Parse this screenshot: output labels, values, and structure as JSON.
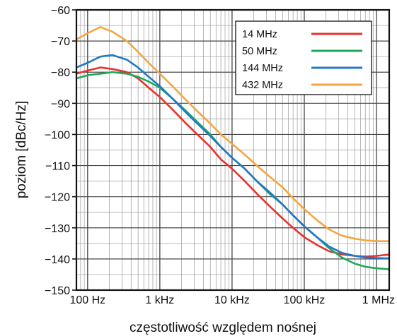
{
  "chart_data": {
    "type": "line",
    "xscale": "log",
    "xlabel": "częstotliwość względem nośnej",
    "ylabel": "poziom [dBc/Hz]",
    "xlim": [
      70,
      1500000
    ],
    "ylim": [
      -150,
      -60
    ],
    "xticks": [
      {
        "value": 100,
        "label": "100 Hz"
      },
      {
        "value": 1000,
        "label": "1 kHz"
      },
      {
        "value": 10000,
        "label": "10 kHz"
      },
      {
        "value": 100000,
        "label": "100 kHz"
      },
      {
        "value": 1000000,
        "label": "1 MHz"
      }
    ],
    "yticks": [
      {
        "value": -60,
        "label": "−60"
      },
      {
        "value": -70,
        "label": "−70"
      },
      {
        "value": -80,
        "label": "−80"
      },
      {
        "value": -90,
        "label": "−90"
      },
      {
        "value": -100,
        "label": "−100"
      },
      {
        "value": -110,
        "label": "−110"
      },
      {
        "value": -120,
        "label": "−120"
      },
      {
        "value": -130,
        "label": "−130"
      },
      {
        "value": -140,
        "label": "−140"
      },
      {
        "value": -150,
        "label": "−150"
      }
    ],
    "grid": true,
    "legend_position": "top-right",
    "series": [
      {
        "name": "14 MHz",
        "color": "#e8322d",
        "points": [
          [
            70,
            -80.5
          ],
          [
            100,
            -79.5
          ],
          [
            150,
            -78.5
          ],
          [
            220,
            -79
          ],
          [
            350,
            -80
          ],
          [
            500,
            -82
          ],
          [
            700,
            -85
          ],
          [
            1000,
            -88
          ],
          [
            1500,
            -92
          ],
          [
            2200,
            -96
          ],
          [
            3300,
            -100
          ],
          [
            5000,
            -104
          ],
          [
            7000,
            -108
          ],
          [
            10000,
            -111
          ],
          [
            15000,
            -115
          ],
          [
            22000,
            -119
          ],
          [
            33000,
            -123
          ],
          [
            50000,
            -127
          ],
          [
            70000,
            -130
          ],
          [
            100000,
            -133
          ],
          [
            150000,
            -135.5
          ],
          [
            220000,
            -137.5
          ],
          [
            330000,
            -138.5
          ],
          [
            500000,
            -139
          ],
          [
            700000,
            -139.2
          ],
          [
            1000000,
            -139
          ],
          [
            1500000,
            -138.6
          ]
        ]
      },
      {
        "name": "50 MHz",
        "color": "#1fa85a",
        "points": [
          [
            70,
            -82
          ],
          [
            100,
            -81
          ],
          [
            150,
            -80.5
          ],
          [
            220,
            -80
          ],
          [
            350,
            -80.5
          ],
          [
            500,
            -81.5
          ],
          [
            700,
            -83
          ],
          [
            1000,
            -85
          ],
          [
            1500,
            -88.5
          ],
          [
            2200,
            -92
          ],
          [
            3300,
            -96
          ],
          [
            5000,
            -100
          ],
          [
            7000,
            -104
          ],
          [
            10000,
            -107.5
          ],
          [
            15000,
            -111
          ],
          [
            22000,
            -115
          ],
          [
            33000,
            -119
          ],
          [
            50000,
            -122.5
          ],
          [
            70000,
            -126
          ],
          [
            100000,
            -129.5
          ],
          [
            150000,
            -133
          ],
          [
            220000,
            -136.5
          ],
          [
            330000,
            -139.5
          ],
          [
            500000,
            -141.5
          ],
          [
            700000,
            -142.5
          ],
          [
            1000000,
            -143
          ],
          [
            1500000,
            -143.3
          ]
        ]
      },
      {
        "name": "144 MHz",
        "color": "#1f78c8",
        "points": [
          [
            70,
            -78.5
          ],
          [
            100,
            -77
          ],
          [
            150,
            -75
          ],
          [
            220,
            -74.5
          ],
          [
            350,
            -76
          ],
          [
            500,
            -78.5
          ],
          [
            700,
            -81.5
          ],
          [
            1000,
            -84.5
          ],
          [
            1500,
            -88.5
          ],
          [
            2200,
            -92.5
          ],
          [
            3300,
            -96.5
          ],
          [
            5000,
            -100.5
          ],
          [
            7000,
            -104
          ],
          [
            10000,
            -107.5
          ],
          [
            15000,
            -111
          ],
          [
            22000,
            -115
          ],
          [
            33000,
            -118.5
          ],
          [
            50000,
            -122.5
          ],
          [
            70000,
            -126
          ],
          [
            100000,
            -129.5
          ],
          [
            150000,
            -133
          ],
          [
            220000,
            -136
          ],
          [
            330000,
            -138
          ],
          [
            500000,
            -139
          ],
          [
            700000,
            -139.5
          ],
          [
            1000000,
            -139.7
          ],
          [
            1500000,
            -139.8
          ]
        ]
      },
      {
        "name": "432 MHz",
        "color": "#f5a540",
        "points": [
          [
            70,
            -69.5
          ],
          [
            100,
            -67.5
          ],
          [
            150,
            -65.5
          ],
          [
            220,
            -67
          ],
          [
            350,
            -70
          ],
          [
            500,
            -73.5
          ],
          [
            700,
            -77
          ],
          [
            1000,
            -80.5
          ],
          [
            1500,
            -84.5
          ],
          [
            2200,
            -88.5
          ],
          [
            3300,
            -92.5
          ],
          [
            5000,
            -96.5
          ],
          [
            7000,
            -100
          ],
          [
            10000,
            -103
          ],
          [
            15000,
            -106.5
          ],
          [
            22000,
            -110
          ],
          [
            33000,
            -113.5
          ],
          [
            50000,
            -117
          ],
          [
            70000,
            -120.5
          ],
          [
            100000,
            -124
          ],
          [
            150000,
            -127.5
          ],
          [
            220000,
            -130.5
          ],
          [
            330000,
            -132.5
          ],
          [
            500000,
            -133.5
          ],
          [
            700000,
            -134
          ],
          [
            1000000,
            -134.3
          ],
          [
            1500000,
            -134.3
          ]
        ]
      }
    ]
  }
}
